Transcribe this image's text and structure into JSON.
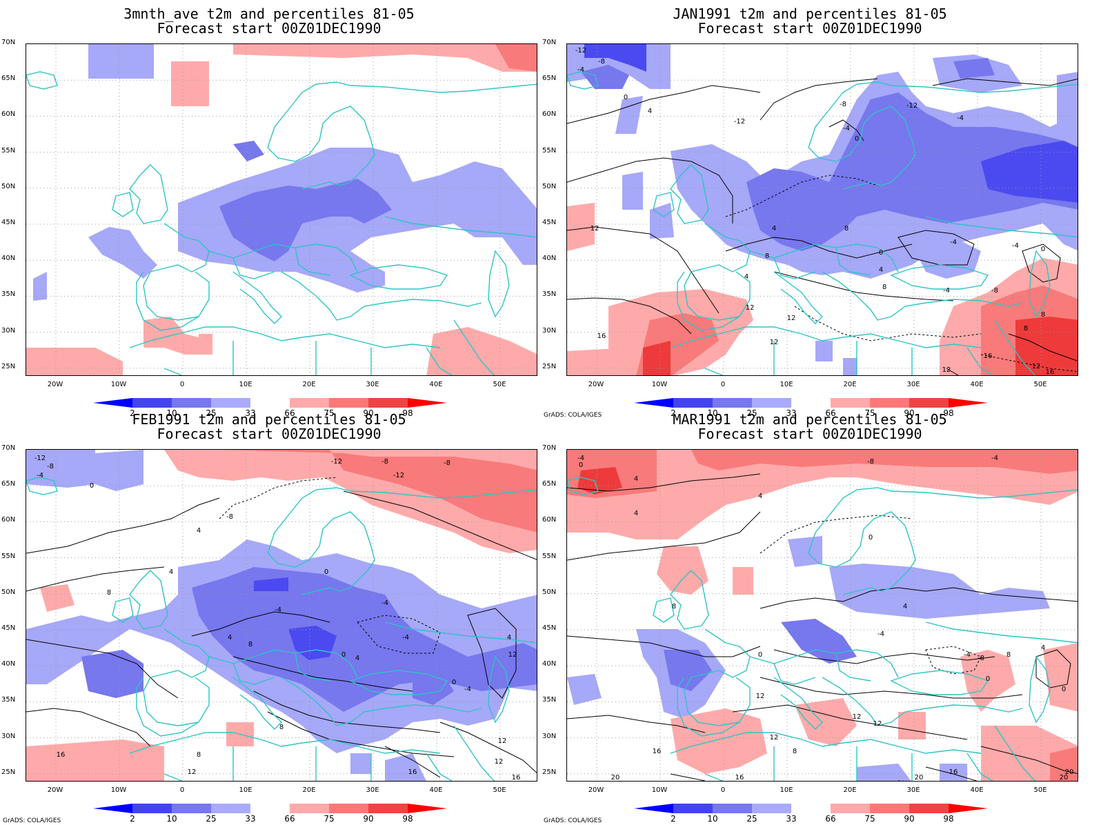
{
  "panels": [
    {
      "id": "p1",
      "title1": "3mnth_ave t2m and percentiles 81-05",
      "title2": "Forecast start 00Z01DEC1990",
      "credit": "",
      "contour_labels": []
    },
    {
      "id": "p2",
      "title1": "JAN1991 t2m and percentiles 81-05",
      "title2": "Forecast start 00Z01DEC1990",
      "credit": "GrADS: COLA/IGES",
      "contour_labels": [
        "-12",
        "-8",
        "-4",
        "0",
        "4",
        "-12",
        "-8",
        "-4",
        "0",
        "-12",
        "8",
        "-4",
        "-4",
        "-4",
        "0",
        "-4",
        "12",
        "4",
        "4",
        "8",
        "12",
        "0",
        "4",
        "8",
        "-8",
        "8",
        "12",
        "12",
        "16",
        "12",
        "8",
        "12",
        "16",
        "16"
      ]
    },
    {
      "id": "p3",
      "title1": "FEB1991 t2m and percentiles 81-05",
      "title2": "Forecast start 00Z01DEC1990",
      "credit": "GrADS: COLA/IGES",
      "contour_labels": [
        "-12",
        "-8",
        "-4",
        "0",
        "-12",
        "-8",
        "-12",
        "-8",
        "4",
        "4",
        "-8",
        "0",
        "8",
        "-4",
        "-4",
        "4",
        "8",
        "0",
        "4",
        "-4",
        "0",
        "4",
        "12",
        "8",
        "8",
        "12",
        "16",
        "16",
        "12",
        "12",
        "16",
        "-4"
      ]
    },
    {
      "id": "p4",
      "title1": "MAR1991 t2m and percentiles 81-05",
      "title2": "Forecast start 00Z01DEC1990",
      "credit": "GrADS: COLA/IGES",
      "contour_labels": [
        "-4",
        "0",
        "4",
        "-8",
        "-4",
        "4",
        "4",
        "0",
        "8",
        "-4",
        "0",
        "4",
        "-4",
        "8",
        "0",
        "4",
        "-8",
        "12",
        "12",
        "8",
        "0",
        "12",
        "16",
        "12",
        "16",
        "20",
        "20",
        "16",
        "20",
        "20"
      ]
    }
  ],
  "y_ticks": [
    "70N",
    "65N",
    "60N",
    "55N",
    "50N",
    "45N",
    "40N",
    "35N",
    "30N",
    "25N"
  ],
  "x_ticks": [
    "20W",
    "10W",
    "0",
    "10E",
    "20E",
    "30E",
    "40E",
    "50E"
  ],
  "colorbar": {
    "labels": [
      "2",
      "10",
      "25",
      "33",
      "66",
      "75",
      "90",
      "98"
    ],
    "colors": [
      "#0000ff",
      "#4444ee",
      "#7777ee",
      "#aaaaff",
      "#ffffff",
      "#ffaaaa",
      "#ff7777",
      "#ee4444",
      "#ff0000"
    ]
  },
  "colors": {
    "coast": "#2ec4c4",
    "contour": "#000000",
    "grid": "#999999",
    "blue_light": "#a6a8f8",
    "blue_mid": "#7777ee",
    "blue_dark": "#4a4af0",
    "red_light": "#ffaaaa",
    "red_mid": "#f97a7a",
    "red_dark": "#ee3a3a"
  }
}
